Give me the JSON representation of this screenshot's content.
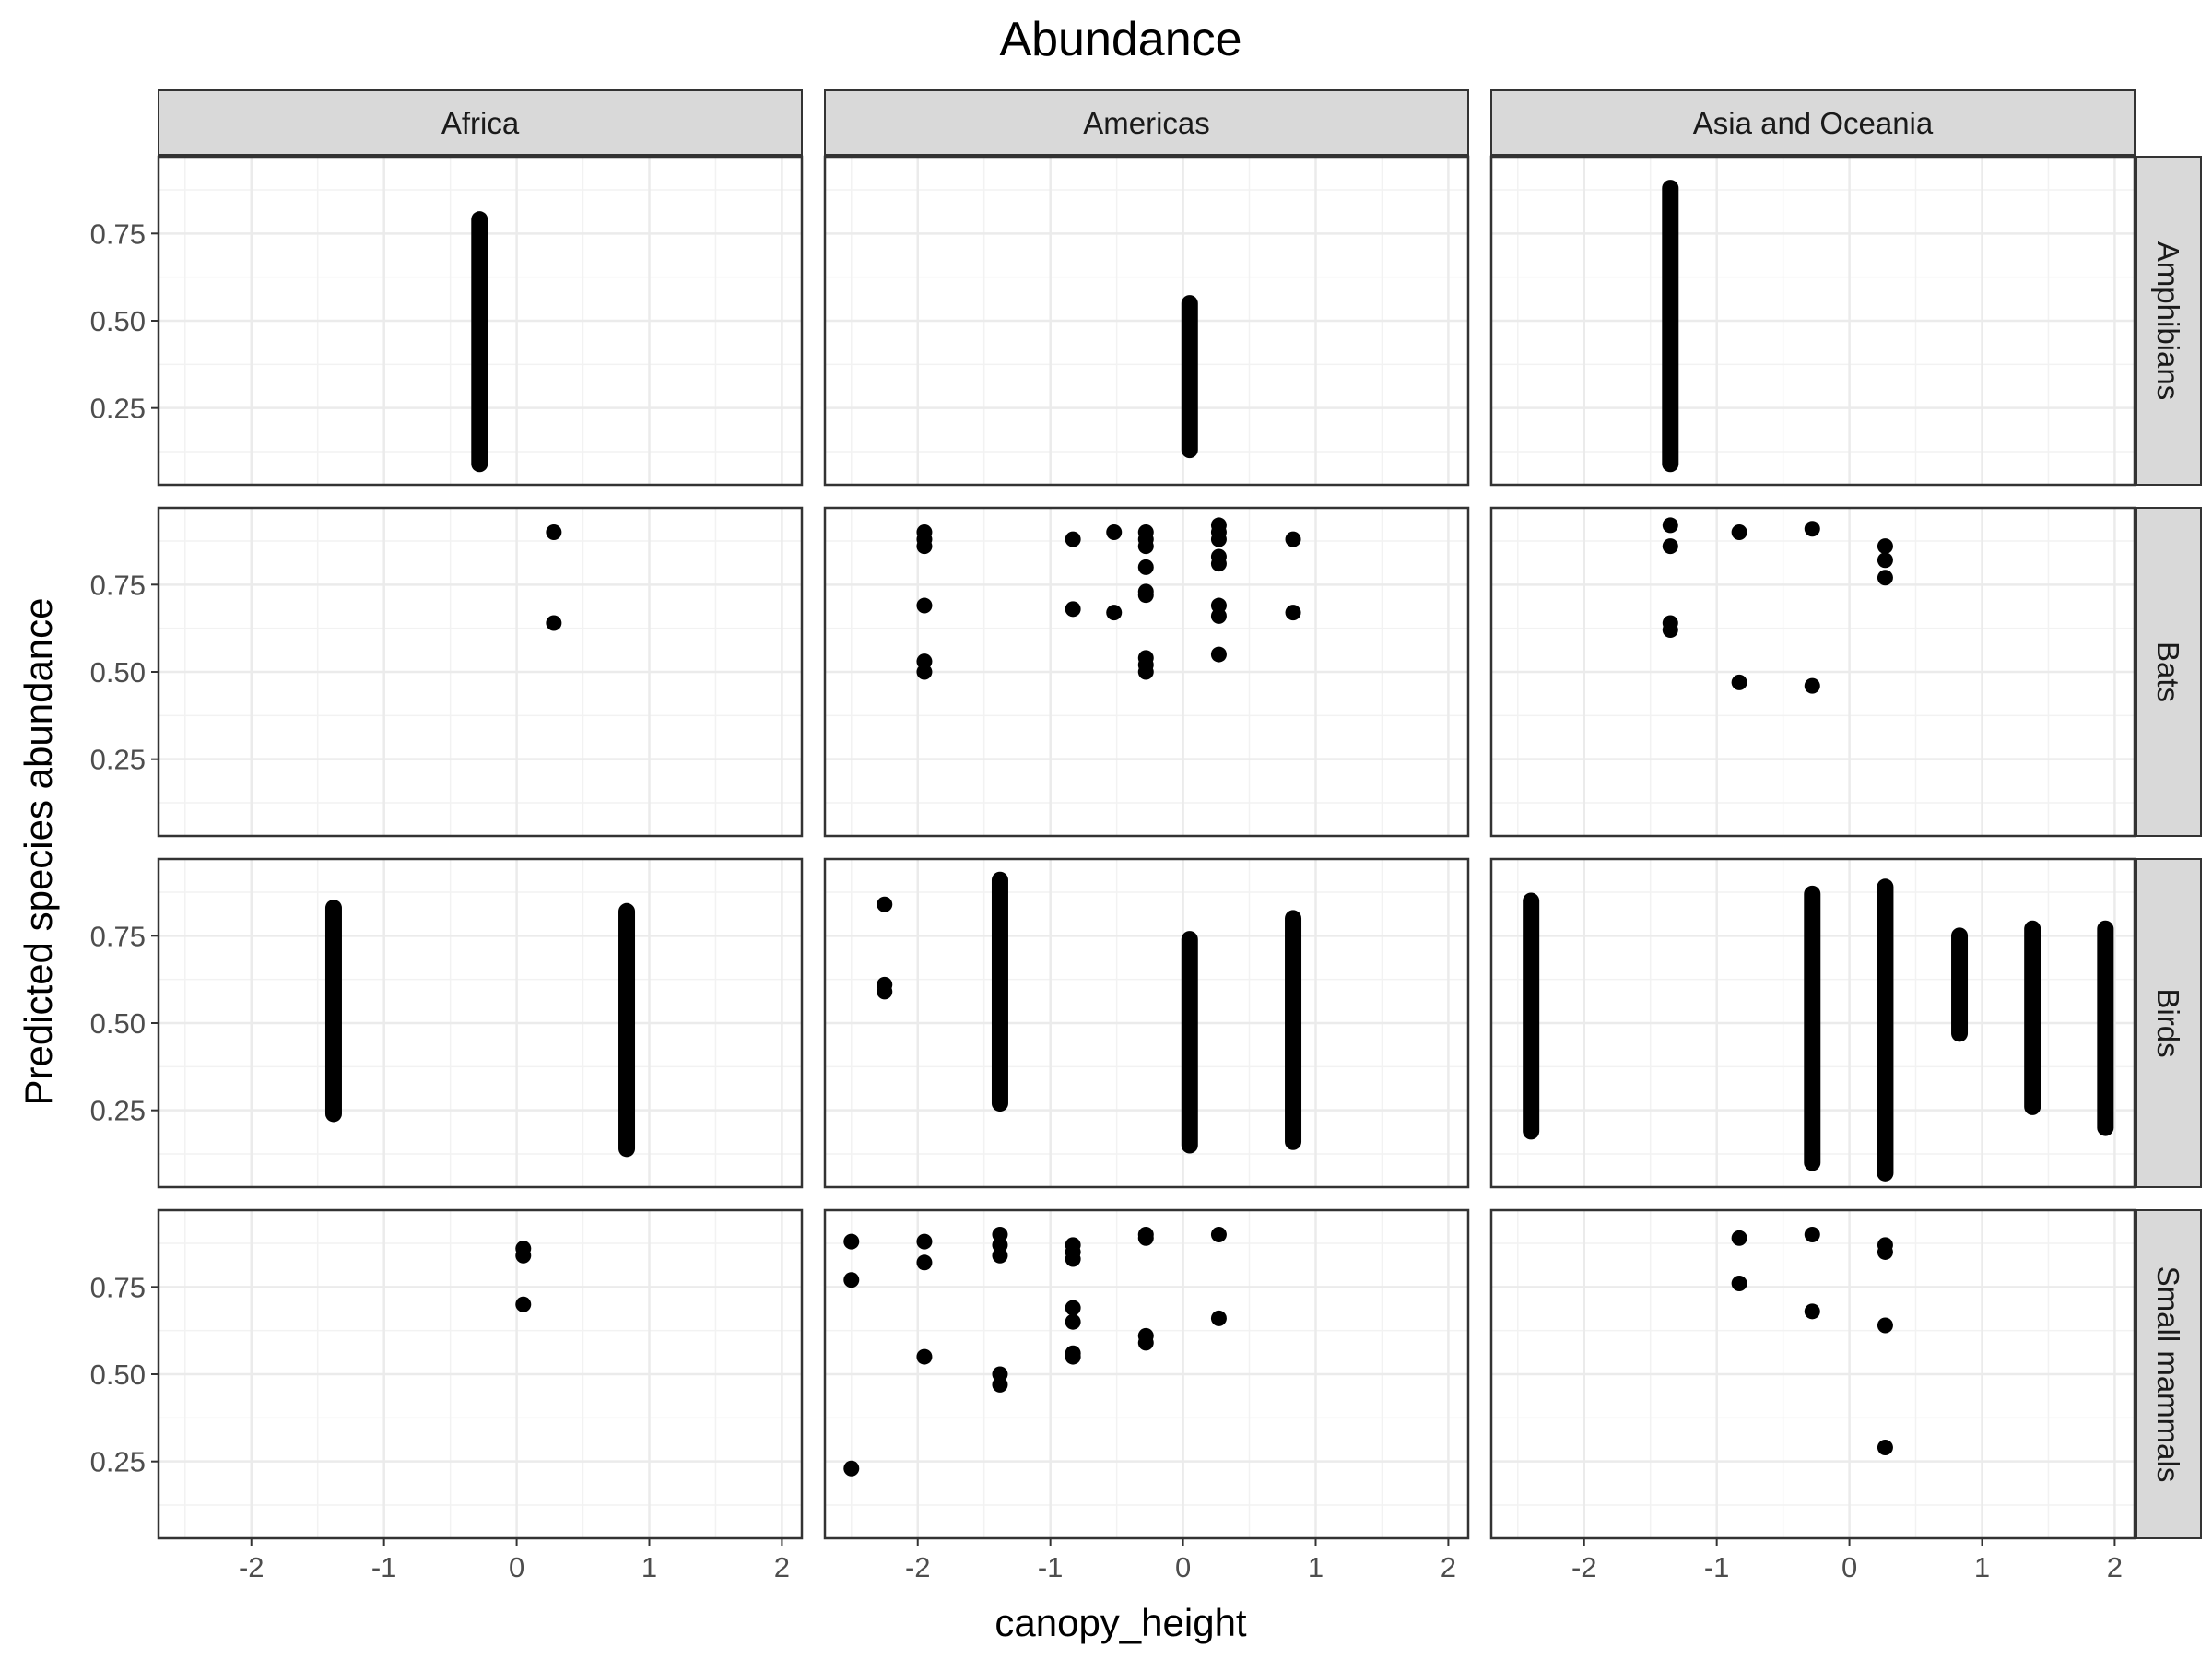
{
  "chart_data": {
    "type": "scatter",
    "title": "Abundance",
    "xlabel": "canopy_height",
    "ylabel": "Predicted species abundance",
    "facet_columns": [
      "Africa",
      "Americas",
      "Asia and Oceania"
    ],
    "facet_rows": [
      "Amphibians",
      "Bats",
      "Birds",
      "Small mammals"
    ],
    "xlim": [
      -2.7,
      2.15
    ],
    "ylim": [
      0.03,
      0.97
    ],
    "x_ticks": [
      -2,
      -1,
      0,
      1,
      2
    ],
    "y_ticks": [
      0.25,
      0.5,
      0.75
    ],
    "x_tick_labels": [
      "-2",
      "-1",
      "0",
      "1",
      "2"
    ],
    "y_tick_labels": [
      "0.25",
      "0.50",
      "0.75"
    ],
    "grid": true,
    "point_color": "#000000",
    "strip_fill": "#d9d9d9",
    "panels": [
      {
        "column": "Africa",
        "row": "Amphibians",
        "strips": [
          {
            "x": -0.28,
            "ymin": 0.09,
            "ymax": 0.79
          }
        ]
      },
      {
        "column": "Americas",
        "row": "Amphibians",
        "strips": [
          {
            "x": 0.05,
            "ymin": 0.13,
            "ymax": 0.55
          }
        ],
        "points": []
      },
      {
        "column": "Asia and Oceania",
        "row": "Amphibians",
        "strips": [
          {
            "x": -1.35,
            "ymin": 0.09,
            "ymax": 0.88
          }
        ]
      },
      {
        "column": "Africa",
        "row": "Bats",
        "points": [
          [
            0.28,
            0.9
          ],
          [
            0.28,
            0.64
          ]
        ]
      },
      {
        "column": "Americas",
        "row": "Bats",
        "points": [
          [
            -1.95,
            0.9
          ],
          [
            -1.95,
            0.88
          ],
          [
            -1.95,
            0.86
          ],
          [
            -1.95,
            0.69
          ],
          [
            -1.95,
            0.53
          ],
          [
            -1.95,
            0.5
          ],
          [
            -0.83,
            0.88
          ],
          [
            -0.83,
            0.68
          ],
          [
            -0.52,
            0.9
          ],
          [
            -0.52,
            0.67
          ],
          [
            -0.28,
            0.9
          ],
          [
            -0.28,
            0.88
          ],
          [
            -0.28,
            0.86
          ],
          [
            -0.28,
            0.8
          ],
          [
            -0.28,
            0.73
          ],
          [
            -0.28,
            0.72
          ],
          [
            -0.28,
            0.54
          ],
          [
            -0.28,
            0.52
          ],
          [
            -0.28,
            0.5
          ],
          [
            0.27,
            0.92
          ],
          [
            0.27,
            0.9
          ],
          [
            0.27,
            0.88
          ],
          [
            0.27,
            0.83
          ],
          [
            0.27,
            0.81
          ],
          [
            0.27,
            0.69
          ],
          [
            0.27,
            0.66
          ],
          [
            0.27,
            0.55
          ],
          [
            0.83,
            0.88
          ],
          [
            0.83,
            0.67
          ]
        ]
      },
      {
        "column": "Asia and Oceania",
        "row": "Bats",
        "points": [
          [
            -1.35,
            0.92
          ],
          [
            -1.35,
            0.86
          ],
          [
            -1.35,
            0.64
          ],
          [
            -1.35,
            0.62
          ],
          [
            -0.83,
            0.9
          ],
          [
            -0.83,
            0.47
          ],
          [
            -0.28,
            0.91
          ],
          [
            -0.28,
            0.46
          ],
          [
            0.27,
            0.86
          ],
          [
            0.27,
            0.82
          ],
          [
            0.27,
            0.77
          ]
        ]
      },
      {
        "column": "Africa",
        "row": "Birds",
        "strips": [
          {
            "x": -1.38,
            "ymin": 0.24,
            "ymax": 0.83
          },
          {
            "x": 0.83,
            "ymin": 0.14,
            "ymax": 0.82
          }
        ]
      },
      {
        "column": "Americas",
        "row": "Birds",
        "strips": [
          {
            "x": -1.38,
            "ymin": 0.27,
            "ymax": 0.91
          },
          {
            "x": 0.05,
            "ymin": 0.15,
            "ymax": 0.74
          },
          {
            "x": 0.83,
            "ymin": 0.16,
            "ymax": 0.8
          }
        ],
        "points": [
          [
            -2.25,
            0.84
          ],
          [
            -2.25,
            0.61
          ],
          [
            -2.25,
            0.59
          ]
        ]
      },
      {
        "column": "Asia and Oceania",
        "row": "Birds",
        "strips": [
          {
            "x": -2.4,
            "ymin": 0.19,
            "ymax": 0.85
          },
          {
            "x": -0.28,
            "ymin": 0.1,
            "ymax": 0.87
          },
          {
            "x": 0.27,
            "ymin": 0.07,
            "ymax": 0.89
          },
          {
            "x": 0.83,
            "ymin": 0.47,
            "ymax": 0.75
          },
          {
            "x": 1.38,
            "ymin": 0.26,
            "ymax": 0.77
          },
          {
            "x": 1.93,
            "ymin": 0.2,
            "ymax": 0.77
          }
        ]
      },
      {
        "column": "Africa",
        "row": "Small mammals",
        "points": [
          [
            0.05,
            0.86
          ],
          [
            0.05,
            0.84
          ],
          [
            0.05,
            0.7
          ]
        ]
      },
      {
        "column": "Americas",
        "row": "Small mammals",
        "points": [
          [
            -2.5,
            0.88
          ],
          [
            -2.5,
            0.77
          ],
          [
            -2.5,
            0.23
          ],
          [
            -1.95,
            0.88
          ],
          [
            -1.95,
            0.82
          ],
          [
            -1.95,
            0.55
          ],
          [
            -1.38,
            0.9
          ],
          [
            -1.38,
            0.87
          ],
          [
            -1.38,
            0.84
          ],
          [
            -1.38,
            0.5
          ],
          [
            -1.38,
            0.47
          ],
          [
            -0.83,
            0.87
          ],
          [
            -0.83,
            0.85
          ],
          [
            -0.83,
            0.83
          ],
          [
            -0.83,
            0.69
          ],
          [
            -0.83,
            0.65
          ],
          [
            -0.83,
            0.56
          ],
          [
            -0.83,
            0.55
          ],
          [
            -0.28,
            0.9
          ],
          [
            -0.28,
            0.89
          ],
          [
            -0.28,
            0.61
          ],
          [
            -0.28,
            0.59
          ],
          [
            0.27,
            0.9
          ],
          [
            0.27,
            0.66
          ]
        ]
      },
      {
        "column": "Asia and Oceania",
        "row": "Small mammals",
        "points": [
          [
            -0.83,
            0.89
          ],
          [
            -0.83,
            0.76
          ],
          [
            -0.28,
            0.9
          ],
          [
            -0.28,
            0.68
          ],
          [
            0.27,
            0.87
          ],
          [
            0.27,
            0.85
          ],
          [
            0.27,
            0.64
          ],
          [
            0.27,
            0.29
          ]
        ]
      }
    ]
  }
}
